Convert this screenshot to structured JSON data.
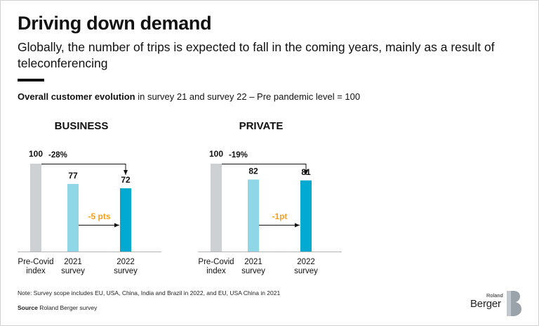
{
  "title": "Driving down demand",
  "subtitle": "Globally, the number of trips is expected to fall in the coming years, mainly as a result of teleconferencing",
  "caption": {
    "bold": "Overall customer evolution",
    "rest": " in survey 21 and survey 22 – Pre pandemic level = 100"
  },
  "colors": {
    "precovid": "#cdd1d4",
    "survey2021": "#8fd7e6",
    "survey2022": "#00a9cf",
    "delta_accent": "#f7a11b"
  },
  "chart_data": [
    {
      "type": "bar",
      "title": "BUSINESS",
      "categories": [
        "Pre-Covid index",
        "2021 survey",
        "2022 survey"
      ],
      "category_lines": [
        [
          "Pre-Covid",
          "index"
        ],
        [
          "2021",
          "survey"
        ],
        [
          "2022",
          "survey"
        ]
      ],
      "values": [
        100,
        77,
        72
      ],
      "value_labels": [
        "100",
        "77",
        "72"
      ],
      "total_change_label": "-28%",
      "yoy_change_label": "-5 pts",
      "ylim": [
        0,
        100
      ]
    },
    {
      "type": "bar",
      "title": "PRIVATE",
      "categories": [
        "Pre-Covid index",
        "2021 survey",
        "2022 survey"
      ],
      "category_lines": [
        [
          "Pre-Covid",
          "index"
        ],
        [
          "2021",
          "survey"
        ],
        [
          "2022",
          "survey"
        ]
      ],
      "values": [
        100,
        82,
        81
      ],
      "value_labels": [
        "100",
        "82",
        "81"
      ],
      "total_change_label": "-19%",
      "yoy_change_label": "-1pt",
      "ylim": [
        0,
        100
      ]
    }
  ],
  "note": "Note: Survey scope includes EU, USA, China, India and Brazil in 2022, and EU, USA China in 2021",
  "source": {
    "label": "Source",
    "text": " Roland Berger survey"
  },
  "logo": {
    "top": "Roland",
    "bottom": "Berger"
  }
}
